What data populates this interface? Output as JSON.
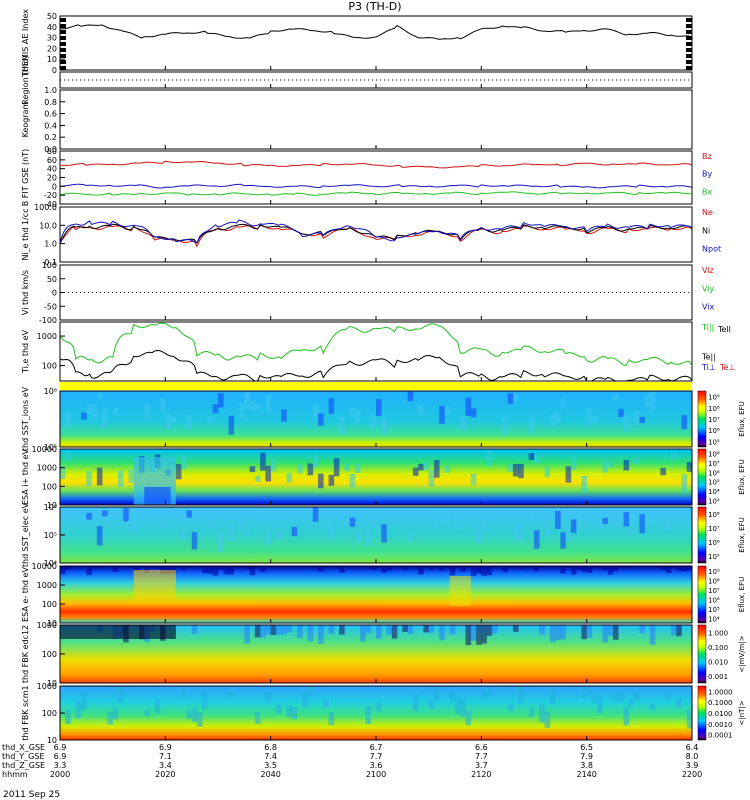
{
  "title": "P3 (TH-D)",
  "time_axis": {
    "ticks": [
      "2000",
      "2020",
      "2040",
      "2100",
      "2120",
      "2140",
      "2200"
    ],
    "x_minutes": [
      0,
      20,
      40,
      60,
      80,
      100,
      120
    ],
    "rows": [
      {
        "label": "thd_X_GSE",
        "values": [
          "6.9",
          "6.9",
          "6.8",
          "6.7",
          "6.6",
          "6.5",
          "6.4"
        ]
      },
      {
        "label": "thd_Y_GSE",
        "values": [
          "6.9",
          "7.1",
          "7.4",
          "7.7",
          "7.7",
          "7.9",
          "8.0"
        ]
      },
      {
        "label": "thd_Z_GSE",
        "values": [
          "3.3",
          "3.4",
          "3.5",
          "3.6",
          "3.7",
          "3.8",
          "3.9"
        ]
      },
      {
        "label": "hhmm",
        "values": [
          "2000",
          "2020",
          "2040",
          "2100",
          "2120",
          "2140",
          "2200"
        ]
      }
    ],
    "date": "2011 Sep 25"
  },
  "chart_data": [
    {
      "type": "line",
      "ylabel": "THEMIS AE Index",
      "ylim": [
        0,
        50
      ],
      "yticks": [
        "0",
        "10",
        "20",
        "30",
        "40",
        "50"
      ],
      "series": [
        {
          "color": "#000000",
          "x": [
            0,
            4,
            8,
            12,
            16,
            20,
            24,
            28,
            32,
            36,
            40,
            44,
            48,
            52,
            56,
            60,
            64,
            68,
            72,
            76,
            80,
            84,
            88,
            92,
            96,
            100,
            104,
            108,
            112,
            116,
            120
          ],
          "y": [
            38,
            41,
            42,
            36,
            30,
            33,
            34,
            35,
            31,
            30,
            35,
            38,
            36,
            35,
            30,
            31,
            40,
            30,
            28,
            30,
            38,
            41,
            39,
            36,
            35,
            37,
            38,
            33,
            34,
            32,
            30
          ]
        }
      ]
    },
    {
      "type": "line",
      "ylabel": "Region (thd)",
      "series": []
    },
    {
      "type": "line",
      "ylabel": "Keogram",
      "ylim": [
        0,
        1
      ],
      "yticks": [
        "0.0",
        "0.2",
        "0.4",
        "0.6",
        "0.8",
        "1.0"
      ],
      "series": []
    },
    {
      "type": "line",
      "ylabel": "B FIT GSE (nT)",
      "ylim": [
        -40,
        80
      ],
      "yticks": [
        "-40",
        "-20",
        "0",
        "20",
        "40",
        "60",
        "80"
      ],
      "series": [
        {
          "name": "Bz",
          "color": "#d01010",
          "x": [
            0,
            5,
            10,
            15,
            20,
            25,
            30,
            35,
            40,
            45,
            50,
            55,
            60,
            65,
            70,
            75,
            80,
            85,
            90,
            95,
            100,
            105,
            110,
            115,
            120
          ],
          "y": [
            48,
            49,
            51,
            53,
            55,
            54,
            52,
            49,
            48,
            48,
            49,
            50,
            47,
            46,
            44,
            45,
            46,
            47,
            48,
            50,
            52,
            51,
            50,
            49,
            48
          ]
        },
        {
          "name": "By",
          "color": "#1010c0",
          "x": [
            0,
            5,
            10,
            15,
            20,
            25,
            30,
            35,
            40,
            45,
            50,
            55,
            60,
            65,
            70,
            75,
            80,
            85,
            90,
            95,
            100,
            105,
            110,
            115,
            120
          ],
          "y": [
            2,
            2,
            3,
            2,
            -2,
            0,
            1,
            2,
            1,
            0,
            0,
            1,
            0,
            1,
            1,
            2,
            1,
            0,
            0,
            1,
            -1,
            0,
            0,
            -1,
            -2
          ]
        },
        {
          "name": "Bx",
          "color": "#20c020",
          "x": [
            0,
            5,
            10,
            15,
            20,
            25,
            30,
            35,
            40,
            45,
            50,
            55,
            60,
            65,
            70,
            75,
            80,
            85,
            90,
            95,
            100,
            105,
            110,
            115,
            120
          ],
          "y": [
            -18,
            -18,
            -17,
            -17,
            -15,
            -20,
            -18,
            -17,
            -17,
            -17,
            -18,
            -16,
            -17,
            -16,
            -15,
            -15,
            -16,
            -15,
            -16,
            -16,
            -14,
            -15,
            -16,
            -16,
            -17
          ]
        }
      ]
    },
    {
      "type": "line",
      "ylabel": "Ni_e thd 1/cc",
      "yscale": "log",
      "ylim": [
        0.1,
        100
      ],
      "yticks": [
        "0.1",
        "1.0",
        "10.0",
        "100.0"
      ],
      "series": [
        {
          "name": "Ne",
          "color": "#d01010",
          "x": [
            0,
            3,
            6,
            10,
            14,
            18,
            22,
            26,
            30,
            34,
            38,
            42,
            46,
            50,
            55,
            60,
            64,
            68,
            72,
            76,
            80,
            84,
            88,
            92,
            96,
            100,
            104,
            108,
            112,
            116,
            120
          ],
          "y": [
            1,
            7,
            9,
            9,
            7,
            1.5,
            1.5,
            1,
            7,
            9,
            8,
            6,
            3,
            3,
            7,
            2,
            2,
            3,
            4,
            2,
            6,
            5,
            7,
            6,
            6,
            5,
            7,
            6,
            6,
            6,
            6
          ]
        },
        {
          "name": "Ni",
          "color": "#000000",
          "x": [
            0,
            3,
            6,
            10,
            14,
            18,
            22,
            26,
            30,
            34,
            38,
            42,
            46,
            50,
            55,
            60,
            64,
            68,
            72,
            76,
            80,
            84,
            88,
            92,
            96,
            100,
            104,
            108,
            112,
            116,
            120
          ],
          "y": [
            1.2,
            8,
            10,
            10,
            8,
            1.8,
            1.8,
            1.2,
            8,
            10,
            9,
            7,
            3.5,
            3.5,
            8,
            2.3,
            2.3,
            3.5,
            4.5,
            2.3,
            7,
            6,
            8,
            7,
            7,
            6,
            8,
            7,
            7,
            7,
            7
          ]
        },
        {
          "name": "Npot",
          "color": "#1010c0",
          "x": [
            0,
            3,
            6,
            10,
            14,
            18,
            22,
            26,
            30,
            34,
            38,
            42,
            46,
            50,
            55,
            60,
            64,
            68,
            72,
            76,
            80,
            84,
            88,
            92,
            96,
            100,
            104,
            108,
            112,
            116,
            120
          ],
          "y": [
            1.3,
            12,
            16,
            14,
            10,
            1.8,
            1.6,
            1.1,
            12,
            16,
            12,
            9,
            3,
            3,
            12,
            2,
            2,
            3,
            5,
            2,
            9,
            6,
            12,
            8,
            9,
            6,
            12,
            8,
            9,
            8,
            8
          ]
        }
      ]
    },
    {
      "type": "line",
      "ylabel": "Vi thd km/s",
      "ylim": [
        -100,
        100
      ],
      "yticks": [
        "-100",
        "-50",
        "0",
        "50",
        "100"
      ],
      "series": [
        {
          "name": "Viz",
          "color": "#d01010",
          "x": [],
          "y": []
        },
        {
          "name": "Viy",
          "color": "#20c020",
          "x": [],
          "y": []
        },
        {
          "name": "Vix",
          "color": "#1010c0",
          "x": [],
          "y": []
        }
      ]
    },
    {
      "type": "line",
      "ylabel": "Ti,e thd eV",
      "yscale": "log",
      "ylim": [
        30,
        3000
      ],
      "yticks": [
        "100",
        "1000"
      ],
      "series": [
        {
          "name": "Ti||",
          "color": "#20c020",
          "x": [
            0,
            3,
            6,
            10,
            14,
            18,
            22,
            26,
            30,
            34,
            38,
            42,
            46,
            50,
            55,
            60,
            64,
            68,
            72,
            76,
            80,
            84,
            88,
            92,
            96,
            100,
            104,
            108,
            112,
            116,
            120
          ],
          "y": [
            1000,
            200,
            180,
            200,
            2000,
            2200,
            1800,
            300,
            250,
            220,
            200,
            180,
            300,
            400,
            2000,
            2100,
            1500,
            1800,
            2000,
            400,
            350,
            300,
            350,
            300,
            250,
            200,
            180,
            150,
            150,
            120,
            100
          ]
        },
        {
          "name": "Te||",
          "color": "#000000",
          "x": [
            0,
            3,
            6,
            10,
            14,
            18,
            22,
            26,
            30,
            34,
            38,
            42,
            46,
            50,
            55,
            60,
            64,
            68,
            72,
            76,
            80,
            84,
            88,
            92,
            96,
            100,
            104,
            108,
            112,
            116,
            120
          ],
          "y": [
            200,
            60,
            55,
            60,
            200,
            250,
            200,
            60,
            50,
            45,
            40,
            38,
            45,
            50,
            150,
            160,
            120,
            150,
            180,
            60,
            50,
            45,
            50,
            45,
            40,
            38,
            36,
            35,
            35,
            33,
            32
          ]
        }
      ],
      "legend_extra": [
        "Tell",
        "Ti⊥",
        "Te⊥"
      ]
    },
    {
      "type": "heatmap",
      "ylabel": "thd SST_ions eV",
      "yticks": [
        "10⁵",
        "10⁶"
      ],
      "colorbar": {
        "label": "Eflux, EFU",
        "ticks": [
          "10⁵",
          "10⁶",
          "10⁷",
          "10⁸",
          "10⁹"
        ]
      }
    },
    {
      "type": "heatmap",
      "ylabel": "ESA i+ thd eV",
      "yticks": [
        "10",
        "100",
        "1000",
        "10000"
      ],
      "colorbar": {
        "label": "Eflux, EFU",
        "ticks": [
          "10³",
          "10⁴",
          "10⁵",
          "10⁶",
          "10⁷",
          "10⁸"
        ]
      }
    },
    {
      "type": "heatmap",
      "ylabel": "thd SST_elec eV",
      "yticks": [
        "10⁴",
        "10⁵",
        "10⁶"
      ],
      "colorbar": {
        "label": "Eflux, EFU",
        "ticks": [
          "10⁵",
          "10⁶",
          "10⁷",
          "10⁸"
        ]
      }
    },
    {
      "type": "heatmap",
      "ylabel": "ESA e- thd eV",
      "yticks": [
        "10",
        "100",
        "1000",
        "10000"
      ],
      "colorbar": {
        "label": "Eflux, EFU",
        "ticks": [
          "10⁴",
          "10⁵",
          "10⁶",
          "10⁷",
          "10⁸",
          "10⁹"
        ]
      }
    },
    {
      "type": "heatmap",
      "ylabel": "thd FBK edc12",
      "yticks": [
        "10",
        "100",
        "1000"
      ],
      "colorbar": {
        "label": "<|mV/m|>",
        "ticks": [
          "0.001",
          "0.010",
          "0.100",
          "1.000"
        ]
      }
    },
    {
      "type": "heatmap",
      "ylabel": "thd FBK scm1",
      "yticks": [
        "10",
        "100",
        "1000"
      ],
      "colorbar": {
        "label": "<|nT|>",
        "ticks": [
          "0.0001",
          "0.0010",
          "0.0100",
          "0.1000",
          "1.0000"
        ]
      }
    }
  ]
}
